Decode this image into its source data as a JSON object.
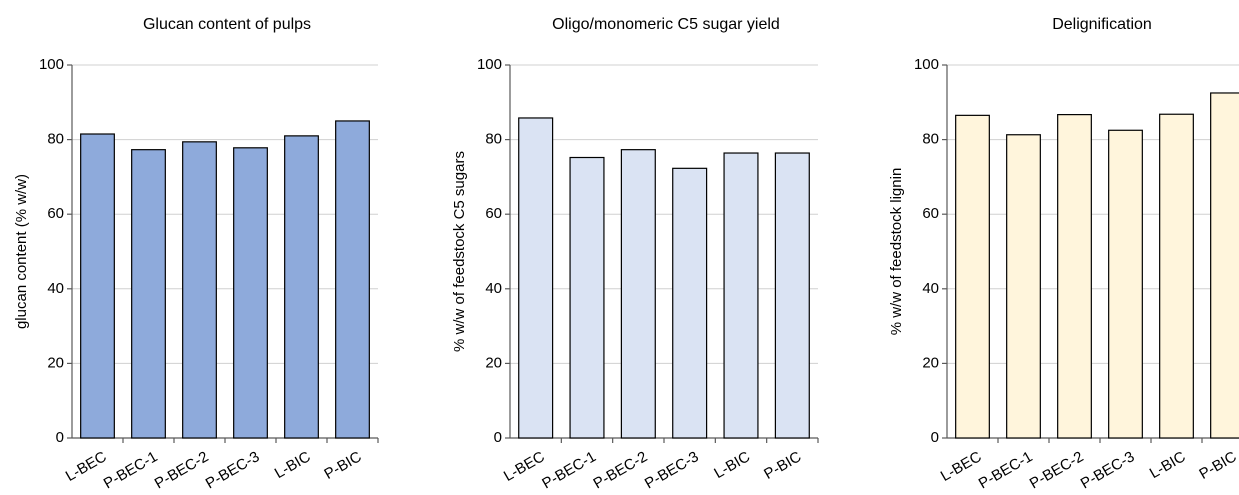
{
  "chart_data": [
    {
      "type": "bar",
      "title": "Glucan content of pulps",
      "y_label": "glucan content (% w/w)",
      "categories": [
        "L-BEC",
        "P-BEC-1",
        "P-BEC-2",
        "P-BEC-3",
        "L-BIC",
        "P-BIC"
      ],
      "values": [
        81.5,
        77.3,
        79.4,
        77.8,
        81.0,
        85.0
      ],
      "color": "#8eaadb",
      "ylim": [
        0,
        100
      ],
      "yticks": [
        0,
        20,
        40,
        60,
        80,
        100
      ],
      "grid": true
    },
    {
      "type": "bar",
      "title": "Oligo/monomeric C5 sugar yield",
      "y_label": "% w/w of feedstock C5 sugars",
      "categories": [
        "L-BEC",
        "P-BEC-1",
        "P-BEC-2",
        "P-BEC-3",
        "L-BIC",
        "P-BIC"
      ],
      "values": [
        85.8,
        75.2,
        77.3,
        72.3,
        76.4,
        76.4
      ],
      "color": "#dae3f3",
      "ylim": [
        0,
        100
      ],
      "yticks": [
        0,
        20,
        40,
        60,
        80,
        100
      ],
      "grid": true
    },
    {
      "type": "bar",
      "title": "Delignification",
      "y_label": "% w/w of feedstock lignin",
      "categories": [
        "L-BEC",
        "P-BEC-1",
        "P-BEC-2",
        "P-BEC-3",
        "L-BIC",
        "P-BIC"
      ],
      "values": [
        86.5,
        81.3,
        86.7,
        82.5,
        86.8,
        92.5
      ],
      "color": "#fff5dc",
      "ylim": [
        0,
        100
      ],
      "yticks": [
        0,
        20,
        40,
        60,
        80,
        100
      ],
      "grid": true
    }
  ]
}
